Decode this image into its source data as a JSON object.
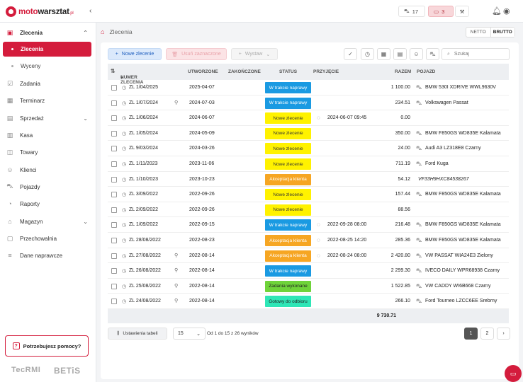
{
  "brand": {
    "name_a": "moto",
    "name_b": "warsztat",
    "name_c": ".pl"
  },
  "topbar": {
    "cars_count": "17",
    "messages_count": "3"
  },
  "sidebar": {
    "parent": "Zlecenia",
    "sub_active": "Zlecenia",
    "sub_other": "Wyceny",
    "items": [
      "Zadania",
      "Terminarz",
      "Sprzedaż",
      "Kasa",
      "Towary",
      "Klienci",
      "Pojazdy",
      "Raporty",
      "Magazyn",
      "Przechowalnia",
      "Dane naprawcze"
    ],
    "help": "Potrzebujesz pomocy?",
    "partner_a": "TecRMI",
    "partner_b": "BETiS"
  },
  "breadcrumb": "Zlecenia",
  "vat": {
    "netto": "NETTO",
    "brutto": "BRUTTO",
    "selected": "BRUTTO"
  },
  "toolbar": {
    "new_label": "Nowe zlecenie",
    "delete_label": "Usuń zaznaczone",
    "export_label": "Wystaw",
    "search_placeholder": "Szukaj"
  },
  "columns": {
    "number": "NUMER ZLECENIA",
    "created": "UTWORZONE",
    "finished": "ZAKOŃCZONE",
    "status": "STATUS",
    "accepted": "PRZYJĘCIE",
    "value": "RAZEM",
    "vehicle": "POJAZD"
  },
  "rows": [
    {
      "number": "ZL 1/04/2025",
      "pin": false,
      "created": "2025-04-07",
      "status": "W trakcie naprawy",
      "color": "blue",
      "accepted": "",
      "value": "1 100.00",
      "vehicle": "BMW 530I XDRIVE WWL9630V",
      "vin": false
    },
    {
      "number": "ZL 1/07/2024",
      "pin": true,
      "created": "2024-07-03",
      "status": "W trakcie naprawy",
      "color": "blue",
      "accepted": "",
      "value": "234.51",
      "vehicle": "Volkswagen Passat",
      "vin": false
    },
    {
      "number": "ZL 1/06/2024",
      "pin": false,
      "created": "2024-06-07",
      "status": "Nowe zlecenie",
      "color": "yellow",
      "accepted": "2024-06-07 09:45",
      "value": "0.00",
      "vehicle": "",
      "vin": false
    },
    {
      "number": "ZL 1/05/2024",
      "pin": false,
      "created": "2024-05-09",
      "status": "Nowe zlecenie",
      "color": "yellow",
      "accepted": "",
      "value": "350.00",
      "vehicle": "BMW F850GS WD835E Kalamata",
      "vin": false
    },
    {
      "number": "ZL 9/03/2024",
      "pin": false,
      "created": "2024-03-26",
      "status": "Nowe zlecenie",
      "color": "yellow",
      "accepted": "",
      "value": "24.00",
      "vehicle": "Audi A3 LZ318E8 Czarny",
      "vin": false
    },
    {
      "number": "ZL 1/11/2023",
      "pin": false,
      "created": "2023-11-06",
      "status": "Nowe zlecenie",
      "color": "yellow",
      "accepted": "",
      "value": "711.19",
      "vehicle": "Ford Kuga",
      "vin": false
    },
    {
      "number": "ZL 1/10/2023",
      "pin": false,
      "created": "2023-10-23",
      "status": "Akceptacja klienta",
      "color": "orange",
      "accepted": "",
      "value": "54.12",
      "vehicle": "VF33H9HXC84538267",
      "vin": true
    },
    {
      "number": "ZL 3/09/2022",
      "pin": false,
      "created": "2022-09-26",
      "status": "Nowe zlecenie",
      "color": "yellow",
      "accepted": "",
      "value": "157.44",
      "vehicle": "BMW F850GS WD835E Kalamata",
      "vin": false
    },
    {
      "number": "ZL 2/09/2022",
      "pin": false,
      "created": "2022-09-26",
      "status": "Nowe zlecenie",
      "color": "yellow",
      "accepted": "",
      "value": "88.56",
      "vehicle": "",
      "vin": false
    },
    {
      "number": "ZL 1/09/2022",
      "pin": false,
      "created": "2022-09-15",
      "status": "W trakcie naprawy",
      "color": "blue",
      "accepted": "2022-09-28 08:00",
      "value": "216.48",
      "vehicle": "BMW F850GS WD835E Kalamata",
      "vin": false
    },
    {
      "number": "ZL 28/08/2022",
      "pin": false,
      "created": "2022-08-23",
      "status": "Akceptacja klienta",
      "color": "orange",
      "accepted": "2022-08-25 14:20",
      "value": "285.36",
      "vehicle": "BMW F850GS WD835E Kalamata",
      "vin": false
    },
    {
      "number": "ZL 27/08/2022",
      "pin": true,
      "created": "2022-08-14",
      "status": "Akceptacja klienta",
      "color": "orange",
      "accepted": "2022-08-24 08:00",
      "value": "2 420.80",
      "vehicle": "VW PASSAT WIA24E3 Zielony",
      "vin": false
    },
    {
      "number": "ZL 26/08/2022",
      "pin": true,
      "created": "2022-08-14",
      "status": "W trakcie naprawy",
      "color": "blue",
      "accepted": "",
      "value": "2 299.30",
      "vehicle": "IVECO DAILY WPR68938 Czarny",
      "vin": false
    },
    {
      "number": "ZL 25/08/2022",
      "pin": true,
      "created": "2022-08-14",
      "status": "Zadania wykonane",
      "color": "green",
      "accepted": "",
      "value": "1 522.85",
      "vehicle": "VW CADDY WI6B668 Czarny",
      "vin": false
    },
    {
      "number": "ZL 24/08/2022",
      "pin": true,
      "created": "2022-08-14",
      "status": "Gotowy do odbioru",
      "color": "cyan",
      "accepted": "",
      "value": "266.10",
      "vehicle": "Ford Tourneo LZCC6EE Srebrny",
      "vin": false
    }
  ],
  "total": "9 730.71",
  "footer": {
    "settings_label": "Ustawienia tabeli",
    "per_page": "15",
    "range_text": "Od 1 do 15 z 26 wyników",
    "pages": [
      "1",
      "2"
    ]
  }
}
